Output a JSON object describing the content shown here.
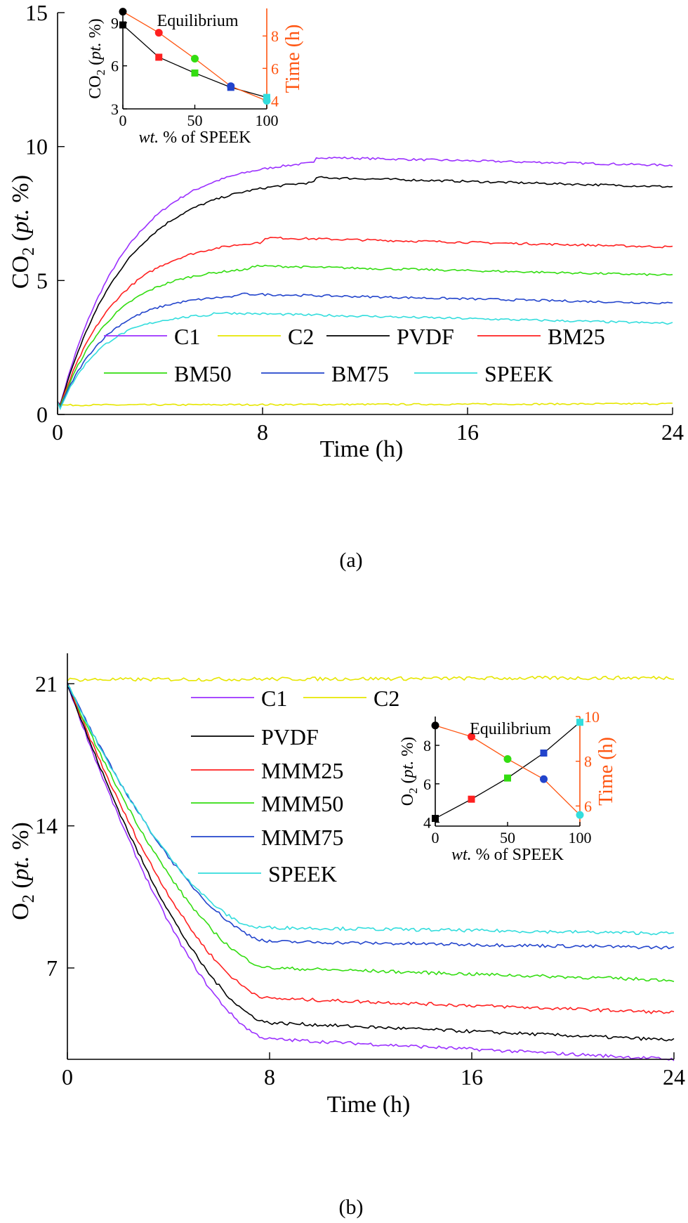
{
  "chart_data": [
    {
      "type": "line",
      "caption": "(a)",
      "xlabel": "Time (h)",
      "ylabel": "CO2 (pt. %)",
      "ylabel_parts": [
        "CO",
        "2",
        " (",
        "pt.",
        " %)"
      ],
      "xlim": [
        0,
        24
      ],
      "ylim": [
        0,
        15
      ],
      "xticks": [
        "0",
        "8",
        "16",
        "24"
      ],
      "yticks": [
        "0",
        "5",
        "10",
        "15"
      ],
      "legend": {
        "placement": "center",
        "entries": [
          "C1",
          "C2",
          "PVDF",
          "BM25",
          "BM50",
          "BM75",
          "SPEEK"
        ]
      },
      "series": [
        {
          "name": "C1",
          "color": "#9b30ff",
          "tau": 2.6,
          "peak": 9.6,
          "tpeak": 10,
          "end": 9.3
        },
        {
          "name": "C2",
          "color": "#e6e600",
          "tau": 0.1,
          "peak": 0.35,
          "tpeak": 8,
          "end": 0.4
        },
        {
          "name": "PVDF",
          "color": "#000000",
          "tau": 2.6,
          "peak": 8.85,
          "tpeak": 10,
          "end": 8.5
        },
        {
          "name": "BM25",
          "color": "#ff2020",
          "tau": 2.2,
          "peak": 6.6,
          "tpeak": 8,
          "end": 6.25
        },
        {
          "name": "BM50",
          "color": "#33dd11",
          "tau": 2.0,
          "peak": 5.55,
          "tpeak": 7.5,
          "end": 5.2
        },
        {
          "name": "BM75",
          "color": "#2244cc",
          "tau": 1.8,
          "peak": 4.5,
          "tpeak": 7,
          "end": 4.15
        },
        {
          "name": "SPEEK",
          "color": "#33dddd",
          "tau": 1.6,
          "peak": 3.8,
          "tpeak": 6,
          "end": 3.4
        }
      ],
      "inset": {
        "title": "Equilibrium",
        "xlabel": "wt. % of SPEEK",
        "ylabel_left": "CO2 (pt. %)",
        "ylabel_right": "Time (h)",
        "right_axis_color": "#ff5511",
        "xlim": [
          0,
          100
        ],
        "ylim_left": [
          3,
          10
        ],
        "ylim_right": [
          3.5,
          9.7
        ],
        "xticks": [
          "0",
          "50",
          "100"
        ],
        "yticks_left": [
          "3",
          "6",
          "9"
        ],
        "yticks_right": [
          "4",
          "6",
          "8"
        ],
        "x": [
          0,
          25,
          50,
          75,
          100
        ],
        "co2": [
          8.85,
          6.6,
          5.5,
          4.5,
          3.8
        ],
        "time": [
          9.5,
          8.2,
          6.6,
          4.9,
          4.0
        ],
        "point_colors": [
          "#000000",
          "#ff2020",
          "#33dd11",
          "#2244cc",
          "#33dddd"
        ]
      }
    },
    {
      "type": "line",
      "caption": "(b)",
      "xlabel": "Time (h)",
      "ylabel": "O2 (pt. %)",
      "ylabel_parts": [
        "O",
        "2",
        " (",
        "pt.",
        " %)"
      ],
      "xlim": [
        0,
        24
      ],
      "ylim": [
        2.5,
        22.5
      ],
      "xticks": [
        "0",
        "8",
        "16",
        "24"
      ],
      "yticks": [
        "7",
        "14",
        "21"
      ],
      "ytick_values": [
        7,
        14,
        21
      ],
      "legend": {
        "placement": "center",
        "entries": [
          "C1",
          "C2",
          "PVDF",
          "MMM25",
          "MMM50",
          "MMM75",
          "SPEEK"
        ]
      },
      "series": [
        {
          "name": "C1",
          "color": "#9b30ff",
          "start": 21,
          "plateau": 3.5,
          "tp": 8.0,
          "end": 2.5
        },
        {
          "name": "C2",
          "color": "#e6e600",
          "start": 21.2,
          "plateau": 21.2,
          "tp": 8,
          "end": 21.3
        },
        {
          "name": "PVDF",
          "color": "#000000",
          "start": 21,
          "plateau": 4.3,
          "tp": 8.0,
          "end": 3.45
        },
        {
          "name": "MMM25",
          "color": "#ff2020",
          "start": 21,
          "plateau": 5.5,
          "tp": 8.0,
          "end": 4.8
        },
        {
          "name": "MMM50",
          "color": "#33dd11",
          "start": 21,
          "plateau": 7.0,
          "tp": 8.0,
          "end": 6.4
        },
        {
          "name": "MMM75",
          "color": "#2244cc",
          "start": 21,
          "plateau": 8.3,
          "tp": 8.0,
          "end": 8.0
        },
        {
          "name": "SPEEK",
          "color": "#33dddd",
          "start": 21,
          "plateau": 9.0,
          "tp": 7.5,
          "end": 8.7
        }
      ],
      "inset": {
        "title": "Equilibrium",
        "xlabel": "wt. % of SPEEK",
        "ylabel_left": "O2 (pt. %)",
        "ylabel_right": "Time (h)",
        "right_axis_color": "#ff5511",
        "xlim": [
          0,
          100
        ],
        "ylim_left": [
          3.8,
          9.5
        ],
        "ylim_right": [
          5.1,
          10
        ],
        "xticks": [
          "0",
          "50",
          "100"
        ],
        "yticks_left": [
          "4",
          "6",
          "8"
        ],
        "yticks_right": [
          "6",
          "8",
          "10"
        ],
        "x": [
          0,
          25,
          50,
          75,
          100
        ],
        "o2": [
          4.2,
          5.2,
          6.3,
          7.6,
          9.2
        ],
        "time": [
          9.6,
          9.1,
          8.1,
          7.2,
          5.6
        ],
        "point_colors": [
          "#000000",
          "#ff2020",
          "#33dd11",
          "#2244cc",
          "#33dddd"
        ]
      }
    }
  ]
}
